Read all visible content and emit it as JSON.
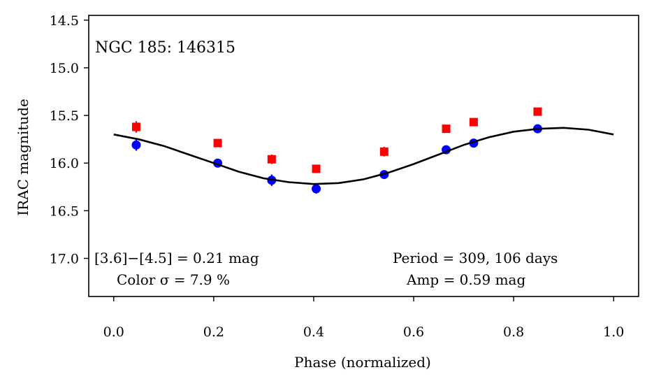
{
  "chart_data": {
    "type": "scatter",
    "title": "NGC 185:  146315",
    "xlabel": "Phase (normalized)",
    "ylabel": "IRAC magnitude",
    "xlim": [
      -0.05,
      1.05
    ],
    "ylim": [
      17.4,
      14.45
    ],
    "y_inverted": true,
    "grid": false,
    "xticks": [
      0.0,
      0.2,
      0.4,
      0.6,
      0.8,
      1.0
    ],
    "xtick_labels": [
      "0.0",
      "0.2",
      "0.4",
      "0.6",
      "0.8",
      "1.0"
    ],
    "yticks": [
      14.5,
      15.0,
      15.5,
      16.0,
      16.5,
      17.0
    ],
    "ytick_labels": [
      "14.5",
      "15.0",
      "15.5",
      "16.0",
      "16.5",
      "17.0"
    ],
    "series": [
      {
        "color": "#ff0000",
        "marker": "square",
        "x": [
          0.045,
          0.208,
          0.316,
          0.405,
          0.541,
          0.665,
          0.72,
          0.848
        ],
        "y": [
          15.62,
          15.79,
          15.96,
          16.06,
          15.88,
          15.64,
          15.57,
          15.46
        ],
        "yerr": [
          0.06,
          0.04,
          0.05,
          0.04,
          0.05,
          0.04,
          0.04,
          0.03
        ]
      },
      {
        "color": "#0000ff",
        "marker": "circle",
        "x": [
          0.045,
          0.208,
          0.316,
          0.405,
          0.541,
          0.665,
          0.72,
          0.848
        ],
        "y": [
          15.81,
          16.0,
          16.18,
          16.27,
          16.12,
          15.86,
          15.79,
          15.64
        ],
        "yerr": [
          0.06,
          0.04,
          0.06,
          0.05,
          0.04,
          0.04,
          0.03,
          0.03
        ]
      },
      {
        "type": "line",
        "color": "#000000",
        "x": [
          0.0,
          0.05,
          0.1,
          0.15,
          0.2,
          0.25,
          0.3,
          0.35,
          0.4,
          0.45,
          0.5,
          0.55,
          0.6,
          0.65,
          0.7,
          0.75,
          0.8,
          0.85,
          0.9,
          0.95,
          1.0
        ],
        "y": [
          15.7,
          15.75,
          15.82,
          15.91,
          16.0,
          16.09,
          16.16,
          16.2,
          16.22,
          16.21,
          16.17,
          16.1,
          16.01,
          15.91,
          15.81,
          15.73,
          15.67,
          15.64,
          15.63,
          15.65,
          15.7
        ]
      }
    ],
    "annotations": {
      "color_text": "[3.6]−[4.5] = 0.21 mag",
      "color_sigma": "Color σ = 7.9 %",
      "period": "Period = 309, 106 days",
      "amp": "Amp = 0.59 mag"
    }
  }
}
